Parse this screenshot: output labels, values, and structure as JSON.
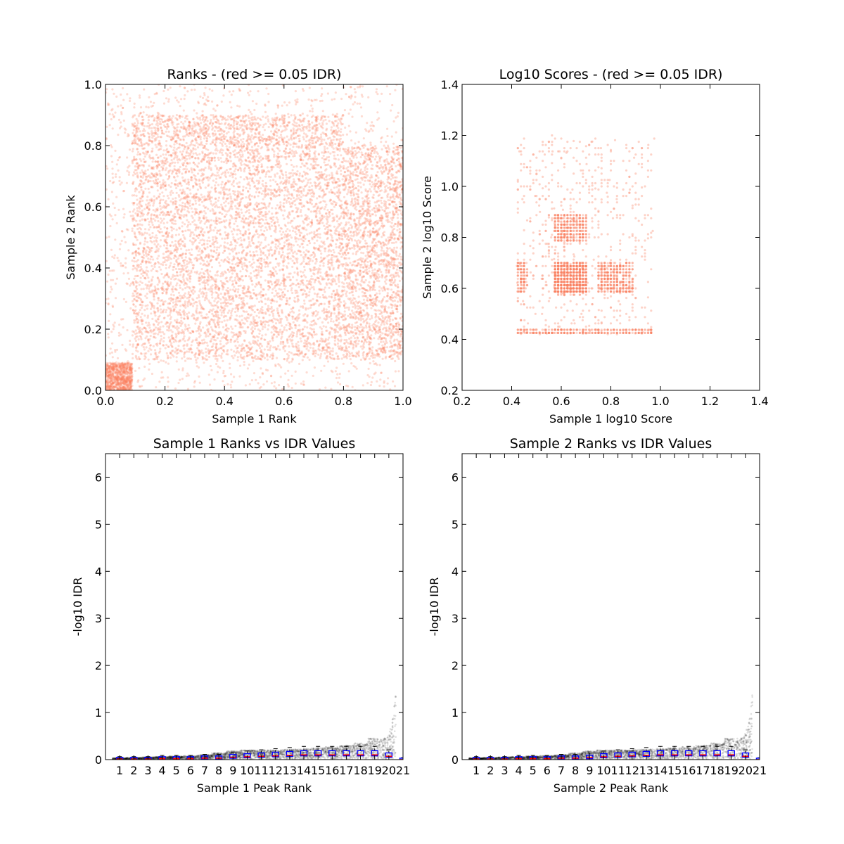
{
  "chart_data": [
    {
      "id": "ranks",
      "type": "scatter",
      "title": "Ranks - (red >= 0.05 IDR)",
      "xlabel": "Sample 1 Rank",
      "ylabel": "Sample 2 Rank",
      "xlim": [
        0.0,
        1.0
      ],
      "ylim": [
        0.0,
        1.0
      ],
      "xticks": [
        "0.0",
        "0.2",
        "0.4",
        "0.6",
        "0.8",
        "1.0"
      ],
      "yticks": [
        "0.0",
        "0.2",
        "0.4",
        "0.6",
        "0.8",
        "1.0"
      ],
      "point_color": "#fa8060",
      "grid": false,
      "clusters": [
        {
          "x": [
            0.0,
            0.09
          ],
          "y": [
            0.0,
            0.09
          ],
          "density": "very high"
        },
        {
          "x": [
            0.09,
            0.8
          ],
          "y": [
            0.1,
            0.8
          ],
          "density": "medium"
        },
        {
          "x": [
            0.09,
            0.8
          ],
          "y": [
            0.8,
            0.9
          ],
          "density": "medium"
        },
        {
          "x": [
            0.8,
            1.0
          ],
          "y": [
            0.1,
            0.8
          ],
          "density": "medium"
        },
        {
          "x": [
            0.0,
            1.0
          ],
          "y": [
            0.0,
            1.0
          ],
          "density": "low"
        }
      ]
    },
    {
      "id": "scores",
      "type": "scatter",
      "title": "Log10 Scores - (red >= 0.05 IDR)",
      "xlabel": "Sample 1 log10 Score",
      "ylabel": "Sample 2 log10 Score",
      "xlim": [
        0.2,
        1.4
      ],
      "ylim": [
        0.2,
        1.4
      ],
      "xticks": [
        "0.2",
        "0.4",
        "0.6",
        "0.8",
        "1.0",
        "1.2",
        "1.4"
      ],
      "yticks": [
        "0.2",
        "0.4",
        "0.6",
        "0.8",
        "1.0",
        "1.2",
        "1.4"
      ],
      "point_color": "#fa8060",
      "grid": false,
      "clusters": [
        {
          "x": [
            0.57,
            0.7
          ],
          "y": [
            0.58,
            0.7
          ],
          "density": "very high"
        },
        {
          "x": [
            0.57,
            0.7
          ],
          "y": [
            0.78,
            0.89
          ],
          "density": "high"
        },
        {
          "x": [
            0.75,
            0.89
          ],
          "y": [
            0.58,
            0.7
          ],
          "density": "high"
        },
        {
          "x": [
            0.42,
            0.46
          ],
          "y": [
            0.58,
            0.7
          ],
          "density": "high"
        },
        {
          "x": [
            0.42,
            0.97
          ],
          "y": [
            0.42,
            0.44
          ],
          "density": "high"
        },
        {
          "x": [
            0.42,
            0.97
          ],
          "y": [
            0.42,
            1.2
          ],
          "density": "low"
        }
      ]
    },
    {
      "id": "idr1",
      "type": "scatter",
      "title": "Sample 1 Ranks vs IDR Values",
      "xlabel": "Sample 1 Peak Rank",
      "ylabel": "-log10 IDR",
      "xlim": [
        0,
        21
      ],
      "ylim": [
        0,
        6.5
      ],
      "xticks": [
        "1",
        "2",
        "3",
        "4",
        "5",
        "6",
        "7",
        "8",
        "9",
        "10",
        "11",
        "12",
        "13",
        "14",
        "15",
        "16",
        "17",
        "18",
        "19",
        "20",
        "21"
      ],
      "yticks": [
        "0",
        "1",
        "2",
        "3",
        "4",
        "5",
        "6"
      ],
      "point_color": "#000000",
      "box_color": "#0000ff",
      "median_color": "#ff0000",
      "grid": false,
      "box_medians": [
        0.01,
        0.01,
        0.01,
        0.02,
        0.02,
        0.02,
        0.03,
        0.03,
        0.05,
        0.06,
        0.07,
        0.08,
        0.09,
        0.1,
        0.1,
        0.1,
        0.1,
        0.1,
        0.1,
        0.07,
        0.0
      ],
      "trend_top": [
        0.03,
        0.04,
        0.05,
        0.06,
        0.07,
        0.08,
        0.1,
        0.14,
        0.18,
        0.2,
        0.2,
        0.21,
        0.22,
        0.23,
        0.25,
        0.27,
        0.3,
        0.35,
        0.45,
        1.45
      ]
    },
    {
      "id": "idr2",
      "type": "scatter",
      "title": "Sample 2 Ranks vs IDR Values",
      "xlabel": "Sample 2 Peak Rank",
      "ylabel": "-log10 IDR",
      "xlim": [
        0,
        21
      ],
      "ylim": [
        0,
        6.5
      ],
      "xticks": [
        "1",
        "2",
        "3",
        "4",
        "5",
        "6",
        "7",
        "8",
        "9",
        "10",
        "11",
        "12",
        "13",
        "14",
        "15",
        "16",
        "17",
        "18",
        "19",
        "20",
        "21"
      ],
      "yticks": [
        "0",
        "1",
        "2",
        "3",
        "4",
        "5",
        "6"
      ],
      "point_color": "#000000",
      "box_color": "#0000ff",
      "median_color": "#ff0000",
      "grid": false,
      "box_medians": [
        0.01,
        0.01,
        0.01,
        0.02,
        0.02,
        0.02,
        0.03,
        0.03,
        0.04,
        0.06,
        0.07,
        0.08,
        0.09,
        0.1,
        0.1,
        0.1,
        0.1,
        0.1,
        0.1,
        0.07,
        0.0
      ],
      "trend_top": [
        0.03,
        0.04,
        0.05,
        0.06,
        0.07,
        0.08,
        0.1,
        0.14,
        0.18,
        0.2,
        0.2,
        0.21,
        0.22,
        0.23,
        0.25,
        0.27,
        0.3,
        0.35,
        0.45,
        1.45
      ]
    }
  ]
}
